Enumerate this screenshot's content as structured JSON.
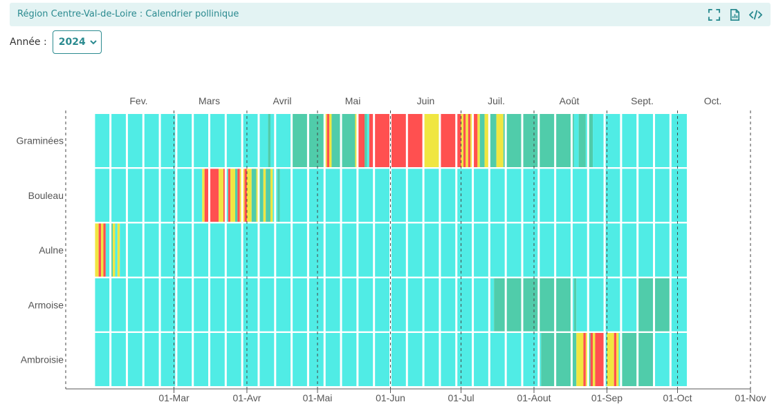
{
  "header": {
    "title": "Région Centre-Val-de-Loire : Calendrier pollinique",
    "icons": [
      "fullscreen-icon",
      "report-icon",
      "code-icon"
    ]
  },
  "year_filter": {
    "label": "Année :",
    "value": "2024"
  },
  "colors": {
    "very_low": "#50ece5",
    "low": "#50ccaa",
    "medium": "#f0e641",
    "high": "#ff5050",
    "grid_sep": "#ffffff",
    "axis": "#555555"
  },
  "chart_data": {
    "type": "heatmap",
    "title": "",
    "year": 2024,
    "x_range": [
      "2024-01-15",
      "2024-11-01"
    ],
    "month_labels": [
      {
        "label": "Fev.",
        "mid": "2024-02-15"
      },
      {
        "label": "Mars",
        "mid": "2024-03-16"
      },
      {
        "label": "Avril",
        "mid": "2024-04-16"
      },
      {
        "label": "Mai",
        "mid": "2024-05-16"
      },
      {
        "label": "Juin",
        "mid": "2024-06-16"
      },
      {
        "label": "Juil.",
        "mid": "2024-07-16"
      },
      {
        "label": "Août",
        "mid": "2024-08-16"
      },
      {
        "label": "Sept.",
        "mid": "2024-09-16"
      },
      {
        "label": "Oct.",
        "mid": "2024-10-16"
      }
    ],
    "x_ticks": [
      {
        "label": "01-Mar",
        "date": "2024-03-01"
      },
      {
        "label": "01-Avr",
        "date": "2024-04-01"
      },
      {
        "label": "01-Mai",
        "date": "2024-05-01"
      },
      {
        "label": "01-Jun",
        "date": "2024-06-01"
      },
      {
        "label": "01-Jul",
        "date": "2024-07-01"
      },
      {
        "label": "01-Aout",
        "date": "2024-08-01"
      },
      {
        "label": "01-Sep",
        "date": "2024-09-01"
      },
      {
        "label": "01-Oct",
        "date": "2024-10-01"
      },
      {
        "label": "01-Nov",
        "date": "2024-11-01"
      }
    ],
    "week_starts": [
      "2024-01-27",
      "2024-02-03",
      "2024-02-10",
      "2024-02-17",
      "2024-02-24",
      "2024-03-02",
      "2024-03-09",
      "2024-03-16",
      "2024-03-23",
      "2024-03-30",
      "2024-04-06",
      "2024-04-13",
      "2024-04-20",
      "2024-04-27",
      "2024-05-04",
      "2024-05-11",
      "2024-05-18",
      "2024-05-25",
      "2024-06-01",
      "2024-06-08",
      "2024-06-15",
      "2024-06-22",
      "2024-06-29",
      "2024-07-06",
      "2024-07-13",
      "2024-07-20",
      "2024-07-27",
      "2024-08-03",
      "2024-08-10",
      "2024-08-17",
      "2024-08-24",
      "2024-08-31",
      "2024-09-07",
      "2024-09-14",
      "2024-09-21",
      "2024-09-28"
    ],
    "legend_levels": [
      "very_low",
      "low",
      "medium",
      "high"
    ],
    "series": [
      {
        "name": "Graminées",
        "periods": [
          {
            "start": "2024-01-27",
            "end": "2024-04-10",
            "level": "very_low"
          },
          {
            "start": "2024-04-10",
            "end": "2024-04-11",
            "level": "low"
          },
          {
            "start": "2024-04-11",
            "end": "2024-04-20",
            "level": "very_low"
          },
          {
            "start": "2024-04-20",
            "end": "2024-05-04",
            "level": "low"
          },
          {
            "start": "2024-05-04",
            "end": "2024-05-05",
            "level": "medium"
          },
          {
            "start": "2024-05-05",
            "end": "2024-05-06",
            "level": "high"
          },
          {
            "start": "2024-05-06",
            "end": "2024-05-07",
            "level": "medium"
          },
          {
            "start": "2024-05-07",
            "end": "2024-05-17",
            "level": "low"
          },
          {
            "start": "2024-05-17",
            "end": "2024-05-18",
            "level": "medium"
          },
          {
            "start": "2024-05-18",
            "end": "2024-05-21",
            "level": "high"
          },
          {
            "start": "2024-05-21",
            "end": "2024-05-22",
            "level": "low"
          },
          {
            "start": "2024-05-22",
            "end": "2024-05-23",
            "level": "very_low"
          },
          {
            "start": "2024-05-23",
            "end": "2024-06-15",
            "level": "high"
          },
          {
            "start": "2024-06-15",
            "end": "2024-06-22",
            "level": "medium"
          },
          {
            "start": "2024-06-22",
            "end": "2024-07-01",
            "level": "high"
          },
          {
            "start": "2024-07-01",
            "end": "2024-07-02",
            "level": "medium"
          },
          {
            "start": "2024-07-02",
            "end": "2024-07-03",
            "level": "high"
          },
          {
            "start": "2024-07-03",
            "end": "2024-07-04",
            "level": "medium"
          },
          {
            "start": "2024-07-04",
            "end": "2024-07-05",
            "level": "high"
          },
          {
            "start": "2024-07-05",
            "end": "2024-07-06",
            "level": "medium"
          },
          {
            "start": "2024-07-06",
            "end": "2024-07-08",
            "level": "high"
          },
          {
            "start": "2024-07-08",
            "end": "2024-07-09",
            "level": "medium"
          },
          {
            "start": "2024-07-09",
            "end": "2024-07-11",
            "level": "low"
          },
          {
            "start": "2024-07-11",
            "end": "2024-07-13",
            "level": "medium"
          },
          {
            "start": "2024-07-13",
            "end": "2024-07-16",
            "level": "low"
          },
          {
            "start": "2024-07-16",
            "end": "2024-07-19",
            "level": "medium"
          },
          {
            "start": "2024-07-19",
            "end": "2024-08-18",
            "level": "low"
          },
          {
            "start": "2024-08-18",
            "end": "2024-08-20",
            "level": "very_low"
          },
          {
            "start": "2024-08-20",
            "end": "2024-08-23",
            "level": "low"
          },
          {
            "start": "2024-08-23",
            "end": "2024-08-24",
            "level": "very_low"
          },
          {
            "start": "2024-08-24",
            "end": "2024-08-26",
            "level": "low"
          },
          {
            "start": "2024-08-26",
            "end": "2024-10-05",
            "level": "very_low"
          }
        ]
      },
      {
        "name": "Bouleau",
        "periods": [
          {
            "start": "2024-01-27",
            "end": "2024-03-13",
            "level": "very_low"
          },
          {
            "start": "2024-03-13",
            "end": "2024-03-14",
            "level": "medium"
          },
          {
            "start": "2024-03-14",
            "end": "2024-03-20",
            "level": "high"
          },
          {
            "start": "2024-03-20",
            "end": "2024-03-22",
            "level": "medium"
          },
          {
            "start": "2024-03-22",
            "end": "2024-03-23",
            "level": "high"
          },
          {
            "start": "2024-03-23",
            "end": "2024-03-24",
            "level": "very_low"
          },
          {
            "start": "2024-03-24",
            "end": "2024-03-25",
            "level": "high"
          },
          {
            "start": "2024-03-25",
            "end": "2024-03-27",
            "level": "medium"
          },
          {
            "start": "2024-03-27",
            "end": "2024-03-28",
            "level": "low"
          },
          {
            "start": "2024-03-28",
            "end": "2024-03-29",
            "level": "high"
          },
          {
            "start": "2024-03-29",
            "end": "2024-03-31",
            "level": "medium"
          },
          {
            "start": "2024-03-31",
            "end": "2024-04-01",
            "level": "high"
          },
          {
            "start": "2024-04-01",
            "end": "2024-04-03",
            "level": "medium"
          },
          {
            "start": "2024-04-03",
            "end": "2024-04-05",
            "level": "low"
          },
          {
            "start": "2024-04-05",
            "end": "2024-04-06",
            "level": "medium"
          },
          {
            "start": "2024-04-06",
            "end": "2024-04-08",
            "level": "low"
          },
          {
            "start": "2024-04-08",
            "end": "2024-04-09",
            "level": "medium"
          },
          {
            "start": "2024-04-09",
            "end": "2024-04-11",
            "level": "low"
          },
          {
            "start": "2024-04-11",
            "end": "2024-04-12",
            "level": "medium"
          },
          {
            "start": "2024-04-12",
            "end": "2024-04-14",
            "level": "very_low"
          },
          {
            "start": "2024-04-14",
            "end": "2024-04-15",
            "level": "low"
          },
          {
            "start": "2024-04-15",
            "end": "2024-10-05",
            "level": "very_low"
          }
        ]
      },
      {
        "name": "Aulne",
        "periods": [
          {
            "start": "2024-01-27",
            "end": "2024-01-29",
            "level": "medium"
          },
          {
            "start": "2024-01-29",
            "end": "2024-01-30",
            "level": "high"
          },
          {
            "start": "2024-01-30",
            "end": "2024-01-31",
            "level": "medium"
          },
          {
            "start": "2024-01-31",
            "end": "2024-02-01",
            "level": "high"
          },
          {
            "start": "2024-02-01",
            "end": "2024-02-03",
            "level": "very_low"
          },
          {
            "start": "2024-02-03",
            "end": "2024-02-04",
            "level": "low"
          },
          {
            "start": "2024-02-04",
            "end": "2024-02-05",
            "level": "medium"
          },
          {
            "start": "2024-02-05",
            "end": "2024-02-06",
            "level": "very_low"
          },
          {
            "start": "2024-02-06",
            "end": "2024-02-07",
            "level": "medium"
          },
          {
            "start": "2024-02-07",
            "end": "2024-10-05",
            "level": "very_low"
          }
        ]
      },
      {
        "name": "Armoise",
        "periods": [
          {
            "start": "2024-01-27",
            "end": "2024-07-15",
            "level": "very_low"
          },
          {
            "start": "2024-07-15",
            "end": "2024-08-17",
            "level": "low"
          },
          {
            "start": "2024-08-17",
            "end": "2024-08-18",
            "level": "very_low"
          },
          {
            "start": "2024-08-18",
            "end": "2024-08-19",
            "level": "low"
          },
          {
            "start": "2024-08-19",
            "end": "2024-09-14",
            "level": "very_low"
          },
          {
            "start": "2024-09-14",
            "end": "2024-09-28",
            "level": "low"
          },
          {
            "start": "2024-09-28",
            "end": "2024-10-05",
            "level": "very_low"
          }
        ]
      },
      {
        "name": "Ambroisie",
        "periods": [
          {
            "start": "2024-01-27",
            "end": "2024-08-04",
            "level": "very_low"
          },
          {
            "start": "2024-08-04",
            "end": "2024-08-19",
            "level": "low"
          },
          {
            "start": "2024-08-19",
            "end": "2024-08-22",
            "level": "medium"
          },
          {
            "start": "2024-08-22",
            "end": "2024-08-23",
            "level": "high"
          },
          {
            "start": "2024-08-23",
            "end": "2024-08-24",
            "level": "medium"
          },
          {
            "start": "2024-08-24",
            "end": "2024-08-25",
            "level": "low"
          },
          {
            "start": "2024-08-25",
            "end": "2024-08-26",
            "level": "high"
          },
          {
            "start": "2024-08-26",
            "end": "2024-08-27",
            "level": "medium"
          },
          {
            "start": "2024-08-27",
            "end": "2024-08-31",
            "level": "high"
          },
          {
            "start": "2024-08-31",
            "end": "2024-09-01",
            "level": "very_low"
          },
          {
            "start": "2024-09-01",
            "end": "2024-09-04",
            "level": "medium"
          },
          {
            "start": "2024-09-04",
            "end": "2024-09-05",
            "level": "high"
          },
          {
            "start": "2024-09-05",
            "end": "2024-09-06",
            "level": "medium"
          },
          {
            "start": "2024-09-06",
            "end": "2024-09-07",
            "level": "very_low"
          },
          {
            "start": "2024-09-07",
            "end": "2024-09-21",
            "level": "low"
          },
          {
            "start": "2024-09-21",
            "end": "2024-10-05",
            "level": "very_low"
          }
        ]
      }
    ]
  }
}
